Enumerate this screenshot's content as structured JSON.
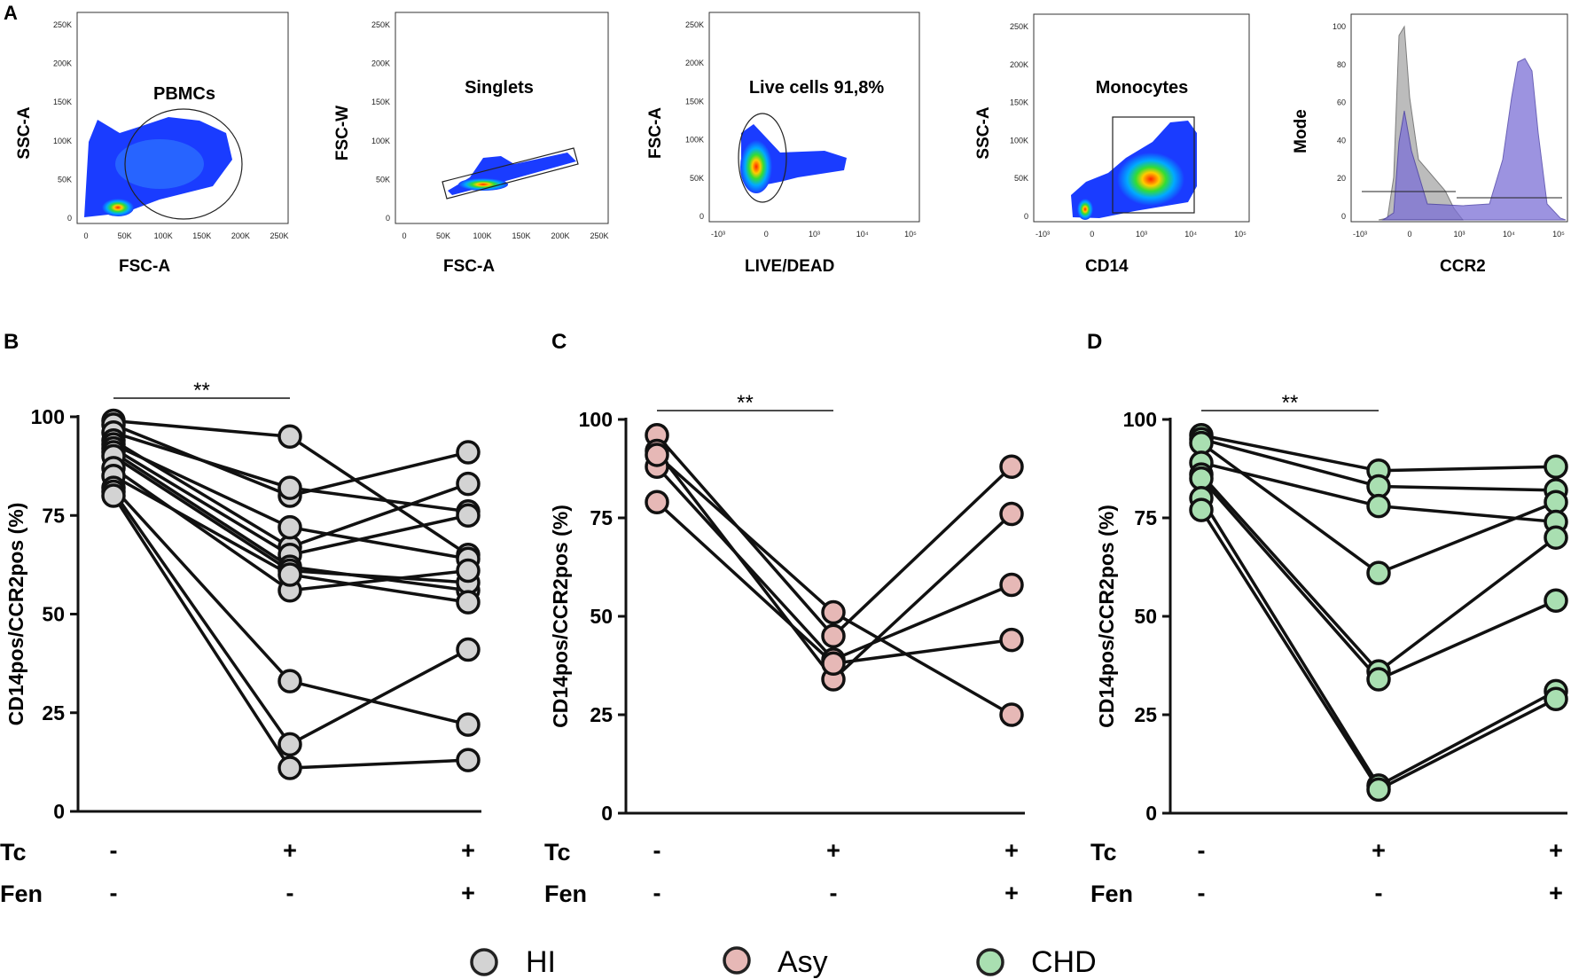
{
  "panel_letters": {
    "a": "A",
    "b": "B",
    "c": "C",
    "d": "D"
  },
  "colors": {
    "HI": "#d3d3d3",
    "Asy": "#e6b8b6",
    "CHD": "#a9dfb1",
    "flow_low": "#1a3cff",
    "histogram_fill": "#7b6fd6",
    "histogram_control": "#b9b9b9"
  },
  "flow_panels": [
    {
      "name": "flow-pbmcs",
      "gate_label": "PBMCs",
      "xlabel": "FSC-A",
      "ylabel": "SSC-A",
      "xticks": [
        "0",
        "50K",
        "100K",
        "150K",
        "200K",
        "250K"
      ],
      "yticks": [
        "0",
        "50K",
        "100K",
        "150K",
        "200K",
        "250K"
      ]
    },
    {
      "name": "flow-singlets",
      "gate_label": "Singlets",
      "xlabel": "FSC-A",
      "ylabel": "FSC-W",
      "xticks": [
        "0",
        "50K",
        "100K",
        "150K",
        "200K",
        "250K"
      ],
      "yticks": [
        "0",
        "50K",
        "100K",
        "150K",
        "200K",
        "250K"
      ]
    },
    {
      "name": "flow-live",
      "gate_label": "Live cells 91,8%",
      "xlabel": "LIVE/DEAD",
      "ylabel": "FSC-A",
      "xticks": [
        "-10³",
        "0",
        "10³",
        "10⁴",
        "10⁵"
      ],
      "yticks": [
        "0",
        "50K",
        "100K",
        "150K",
        "200K",
        "250K"
      ]
    },
    {
      "name": "flow-monocytes",
      "gate_label": "Monocytes",
      "xlabel": "CD14",
      "ylabel": "SSC-A",
      "xticks": [
        "-10³",
        "0",
        "10³",
        "10⁴",
        "10⁵"
      ],
      "yticks": [
        "0",
        "50K",
        "100K",
        "150K",
        "200K",
        "250K"
      ]
    },
    {
      "name": "flow-ccr2-histogram",
      "gate_label": "",
      "xlabel": "CCR2",
      "ylabel": "Mode",
      "xticks": [
        "-10³",
        "0",
        "10³",
        "10⁴",
        "10⁵"
      ],
      "yticks": [
        "0",
        "20",
        "40",
        "60",
        "80",
        "100"
      ]
    }
  ],
  "chart_data": [
    {
      "type": "line",
      "panel": "B",
      "group": "HI",
      "ylabel": "CD14pos/CCR2pos (%)",
      "ylim": [
        0,
        100
      ],
      "yticks": [
        "0",
        "25",
        "50",
        "75",
        "100"
      ],
      "conditions": [
        {
          "tc": "-",
          "fen": "-"
        },
        {
          "tc": "+",
          "fen": "-"
        },
        {
          "tc": "+",
          "fen": "+"
        }
      ],
      "row_labels": {
        "tc": "Tc",
        "fen": "Fen"
      },
      "significance": "**",
      "series": [
        [
          99,
          95,
          65
        ],
        [
          98,
          80,
          91
        ],
        [
          96,
          82,
          76
        ],
        [
          94,
          67,
          83
        ],
        [
          93,
          72,
          64
        ],
        [
          92,
          65,
          75
        ],
        [
          91,
          62,
          56
        ],
        [
          90,
          61,
          58
        ],
        [
          87,
          56,
          61
        ],
        [
          85,
          60,
          53
        ],
        [
          82,
          33,
          22
        ],
        [
          81,
          17,
          41
        ],
        [
          80,
          11,
          13
        ]
      ]
    },
    {
      "type": "line",
      "panel": "C",
      "group": "Asy",
      "ylabel": "CD14pos/CCR2pos (%)",
      "ylim": [
        0,
        100
      ],
      "yticks": [
        "0",
        "25",
        "50",
        "75",
        "100"
      ],
      "conditions": [
        {
          "tc": "-",
          "fen": "-"
        },
        {
          "tc": "+",
          "fen": "-"
        },
        {
          "tc": "+",
          "fen": "+"
        }
      ],
      "row_labels": {
        "tc": "Tc",
        "fen": "Fen"
      },
      "significance": "**",
      "series": [
        [
          96,
          45,
          88
        ],
        [
          92,
          34,
          76
        ],
        [
          88,
          39,
          58
        ],
        [
          79,
          38,
          44
        ],
        [
          91,
          51,
          25
        ]
      ]
    },
    {
      "type": "line",
      "panel": "D",
      "group": "CHD",
      "ylabel": "CD14pos/CCR2pos (%)",
      "ylim": [
        0,
        100
      ],
      "yticks": [
        "0",
        "25",
        "50",
        "75",
        "100"
      ],
      "conditions": [
        {
          "tc": "-",
          "fen": "-"
        },
        {
          "tc": "+",
          "fen": "-"
        },
        {
          "tc": "+",
          "fen": "+"
        }
      ],
      "row_labels": {
        "tc": "Tc",
        "fen": "Fen"
      },
      "significance": "**",
      "series": [
        [
          96,
          87,
          88
        ],
        [
          95,
          83,
          82
        ],
        [
          94,
          61,
          79
        ],
        [
          89,
          78,
          74
        ],
        [
          86,
          36,
          70
        ],
        [
          85,
          34,
          54
        ],
        [
          80,
          7,
          31
        ],
        [
          77,
          6,
          29
        ]
      ]
    }
  ],
  "legend": [
    {
      "label": "HI",
      "color_key": "HI"
    },
    {
      "label": "Asy",
      "color_key": "Asy"
    },
    {
      "label": "CHD",
      "color_key": "CHD"
    }
  ]
}
